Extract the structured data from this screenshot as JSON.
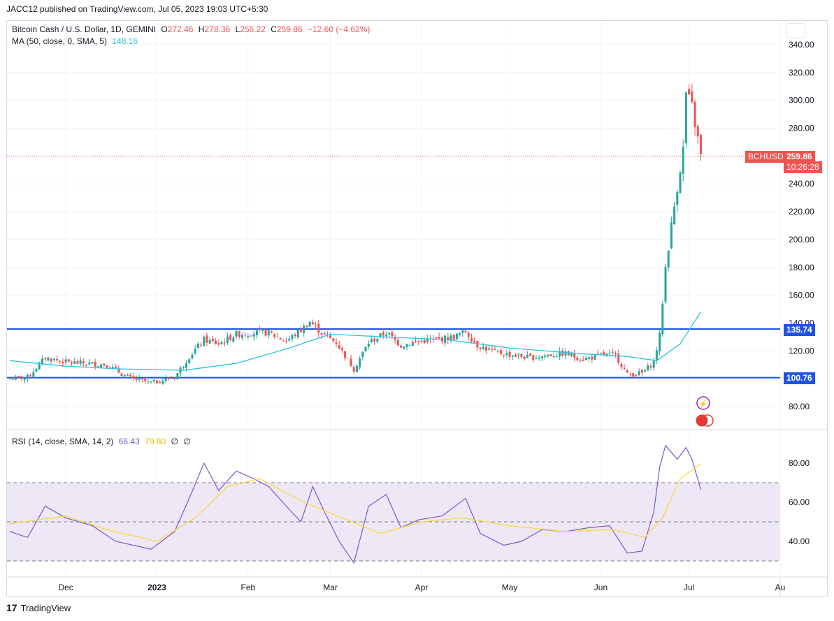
{
  "header": {
    "publisher_line": "JACC12 published on TradingView.com, Jul 05, 2023 19:03 UTC+5:30"
  },
  "legend": {
    "symbol": "Bitcoin Cash / U.S. Dollar, 1D, GEMINI",
    "o_label": "O",
    "o_value": "272.46",
    "h_label": "H",
    "h_value": "278.36",
    "l_label": "L",
    "l_value": "256.22",
    "c_label": "C",
    "c_value": "259.86",
    "change": "−12.60 (−4.62%)",
    "ma_label": "MA (50, close, 0, SMA, 5)",
    "ma_value": "148.16",
    "rsi_label": "RSI (14, close, SMA, 14, 2)",
    "rsi_value": "66.43",
    "rsi_ma_value": "79.80",
    "rsi_extra1": "∅",
    "rsi_extra2": "∅"
  },
  "price_tag": {
    "symbol": "BCHUSD",
    "price": "259.86",
    "countdown": "10:26:28"
  },
  "levels": {
    "upper": "135.74",
    "lower": "100.76"
  },
  "footer": {
    "brand": "TradingView",
    "logo": "17"
  },
  "colors": {
    "up": "#26a69a",
    "down": "#ef5350",
    "ma": "#26c6da",
    "rsi": "#7e57c2",
    "rsi_ma": "#fdd835",
    "level_line": "#1e53e5",
    "rsi_band": "#ede7f6"
  },
  "chart_data": [
    {
      "type": "candlestick",
      "title": "Bitcoin Cash / U.S. Dollar, 1D, GEMINI",
      "y_ticks": [
        "80.00",
        "100.00",
        "120.00",
        "140.00",
        "160.00",
        "180.00",
        "200.00",
        "220.00",
        "240.00",
        "260.00",
        "280.00",
        "300.00",
        "320.00",
        "340.00"
      ],
      "ylim": [
        72,
        346
      ],
      "x_ticks": [
        "Dec",
        "2023",
        "Feb",
        "Mar",
        "Apr",
        "May",
        "Jun",
        "Jul",
        "Au"
      ],
      "horizontal_levels": [
        135.74,
        100.76
      ],
      "last_price": 259.86,
      "series": [
        {
          "name": "BCHUSD",
          "close_path": [
            [
              "2022-11-12",
              100
            ],
            [
              "2022-11-18",
              101
            ],
            [
              "2022-11-24",
              115
            ],
            [
              "2022-12-01",
              112
            ],
            [
              "2022-12-08",
              111
            ],
            [
              "2022-12-15",
              110
            ],
            [
              "2022-12-22",
              101
            ],
            [
              "2022-12-30",
              97
            ],
            [
              "2023-01-07",
              101
            ],
            [
              "2023-01-12",
              116
            ],
            [
              "2023-01-17",
              128
            ],
            [
              "2023-01-22",
              125
            ],
            [
              "2023-01-28",
              132
            ],
            [
              "2023-02-03",
              133
            ],
            [
              "2023-02-08",
              133
            ],
            [
              "2023-02-14",
              127
            ],
            [
              "2023-02-19",
              135
            ],
            [
              "2023-02-22",
              141
            ],
            [
              "2023-02-26",
              133
            ],
            [
              "2023-03-03",
              126
            ],
            [
              "2023-03-09",
              107
            ],
            [
              "2023-03-14",
              126
            ],
            [
              "2023-03-20",
              133
            ],
            [
              "2023-03-25",
              124
            ],
            [
              "2023-03-31",
              127
            ],
            [
              "2023-04-06",
              128
            ],
            [
              "2023-04-12",
              130
            ],
            [
              "2023-04-16",
              134
            ],
            [
              "2023-04-20",
              124
            ],
            [
              "2023-04-26",
              119
            ],
            [
              "2023-05-02",
              117
            ],
            [
              "2023-05-08",
              115
            ],
            [
              "2023-05-14",
              117
            ],
            [
              "2023-05-20",
              118
            ],
            [
              "2023-05-26",
              114
            ],
            [
              "2023-06-01",
              117
            ],
            [
              "2023-06-06",
              117
            ],
            [
              "2023-06-10",
              103
            ],
            [
              "2023-06-15",
              104
            ],
            [
              "2023-06-19",
              112
            ],
            [
              "2023-06-21",
              131
            ],
            [
              "2023-06-23",
              180
            ],
            [
              "2023-06-25",
              210
            ],
            [
              "2023-06-27",
              238
            ],
            [
              "2023-06-29",
              265
            ],
            [
              "2023-06-30",
              305
            ],
            [
              "2023-07-02",
              295
            ],
            [
              "2023-07-04",
              272
            ],
            [
              "2023-07-05",
              259.86
            ]
          ]
        },
        {
          "name": "MA (50, close, 0, SMA, 5)",
          "values": [
            [
              "2022-11-12",
              113
            ],
            [
              "2022-12-01",
              109
            ],
            [
              "2022-12-20",
              107
            ],
            [
              "2023-01-10",
              106
            ],
            [
              "2023-01-28",
              111
            ],
            [
              "2023-02-15",
              122
            ],
            [
              "2023-03-01",
              132
            ],
            [
              "2023-03-20",
              130
            ],
            [
              "2023-04-10",
              128
            ],
            [
              "2023-05-01",
              122
            ],
            [
              "2023-05-25",
              118
            ],
            [
              "2023-06-10",
              116
            ],
            [
              "2023-06-20",
              113
            ],
            [
              "2023-06-28",
              125
            ],
            [
              "2023-07-05",
              148.16
            ]
          ]
        }
      ]
    },
    {
      "type": "line",
      "title": "RSI (14, close, SMA, 14, 2)",
      "y_ticks": [
        "40.00",
        "60.00",
        "80.00"
      ],
      "ylim": [
        26,
        96
      ],
      "bands": [
        70,
        50,
        30
      ],
      "series": [
        {
          "name": "RSI",
          "values": [
            [
              "2022-11-12",
              45
            ],
            [
              "2022-11-18",
              42
            ],
            [
              "2022-11-24",
              58
            ],
            [
              "2022-12-01",
              52
            ],
            [
              "2022-12-10",
              48
            ],
            [
              "2022-12-18",
              40
            ],
            [
              "2022-12-30",
              36
            ],
            [
              "2023-01-07",
              45
            ],
            [
              "2023-01-12",
              62
            ],
            [
              "2023-01-17",
              80
            ],
            [
              "2023-01-22",
              66
            ],
            [
              "2023-01-28",
              76
            ],
            [
              "2023-02-03",
              72
            ],
            [
              "2023-02-08",
              68
            ],
            [
              "2023-02-14",
              58
            ],
            [
              "2023-02-19",
              50
            ],
            [
              "2023-02-23",
              68
            ],
            [
              "2023-02-27",
              55
            ],
            [
              "2023-03-04",
              40
            ],
            [
              "2023-03-09",
              29
            ],
            [
              "2023-03-14",
              58
            ],
            [
              "2023-03-20",
              64
            ],
            [
              "2023-03-25",
              47
            ],
            [
              "2023-03-31",
              51
            ],
            [
              "2023-04-08",
              53
            ],
            [
              "2023-04-16",
              62
            ],
            [
              "2023-04-21",
              44
            ],
            [
              "2023-04-29",
              38
            ],
            [
              "2023-05-05",
              40
            ],
            [
              "2023-05-12",
              46
            ],
            [
              "2023-05-20",
              45
            ],
            [
              "2023-05-28",
              47
            ],
            [
              "2023-06-04",
              48
            ],
            [
              "2023-06-10",
              34
            ],
            [
              "2023-06-15",
              35
            ],
            [
              "2023-06-19",
              55
            ],
            [
              "2023-06-21",
              78
            ],
            [
              "2023-06-23",
              89
            ],
            [
              "2023-06-27",
              82
            ],
            [
              "2023-06-30",
              88
            ],
            [
              "2023-07-02",
              82
            ],
            [
              "2023-07-05",
              66.43
            ]
          ]
        },
        {
          "name": "RSI-based MA",
          "values": [
            [
              "2022-11-12",
              49
            ],
            [
              "2022-12-01",
              53
            ],
            [
              "2022-12-15",
              46
            ],
            [
              "2023-01-01",
              40
            ],
            [
              "2023-01-14",
              52
            ],
            [
              "2023-01-25",
              68
            ],
            [
              "2023-02-05",
              72
            ],
            [
              "2023-02-20",
              60
            ],
            [
              "2023-03-05",
              52
            ],
            [
              "2023-03-18",
              44
            ],
            [
              "2023-04-01",
              50
            ],
            [
              "2023-04-15",
              52
            ],
            [
              "2023-05-01",
              48
            ],
            [
              "2023-05-20",
              45
            ],
            [
              "2023-06-05",
              46
            ],
            [
              "2023-06-16",
              42
            ],
            [
              "2023-06-22",
              52
            ],
            [
              "2023-06-28",
              72
            ],
            [
              "2023-07-05",
              79.8
            ]
          ]
        }
      ]
    }
  ]
}
